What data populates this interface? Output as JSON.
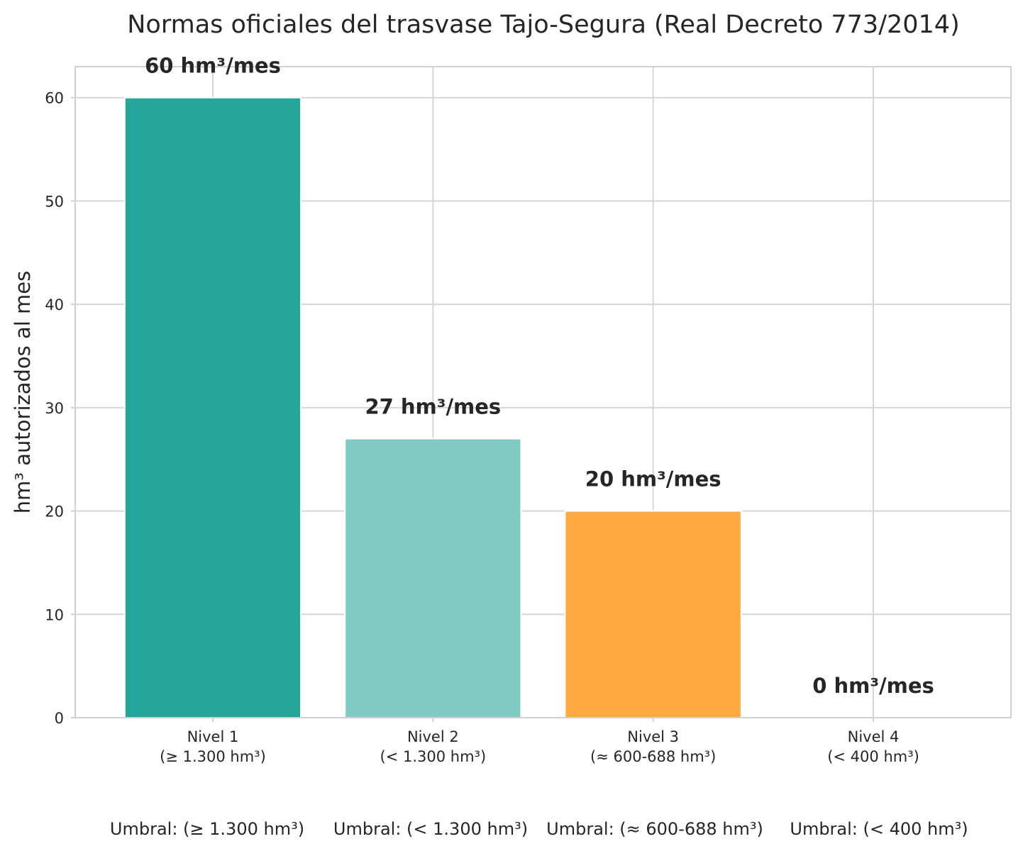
{
  "chart_data": {
    "type": "bar",
    "title": "Normas oficiales del trasvase Tajo-Segura (Real Decreto 773/2014)",
    "xlabel": "",
    "ylabel": "hm³ autorizados al mes",
    "ylim": [
      0,
      63
    ],
    "yticks": [
      0,
      10,
      20,
      30,
      40,
      50,
      60
    ],
    "grid": true,
    "categories": [
      "Nivel 1",
      "Nivel 2",
      "Nivel 3",
      "Nivel 4"
    ],
    "category_sublabels": [
      "(≥ 1.300 hm³)",
      "(< 1.300 hm³)",
      "(≈ 600-688 hm³)",
      "(< 400 hm³)"
    ],
    "values": [
      60,
      27,
      20,
      0
    ],
    "data_labels": [
      "60 hm³/mes",
      "27 hm³/mes",
      "20 hm³/mes",
      "0 hm³/mes"
    ],
    "colors": [
      "#26a69a",
      "#80cbc4",
      "#ffa940",
      "#e0e0e0"
    ],
    "footnotes": [
      "Umbral: (≥ 1.300 hm³)",
      "Umbral: (< 1.300 hm³)",
      "Umbral: (≈ 600-688 hm³)",
      "Umbral: (< 400 hm³)"
    ]
  }
}
